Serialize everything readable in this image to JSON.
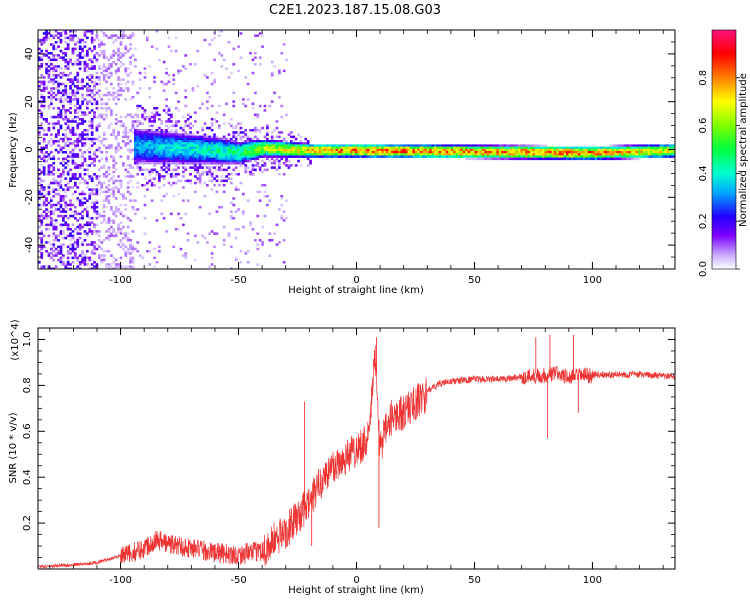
{
  "title": "C2E1.2023.187.15.08.G03",
  "colors": {
    "snr_line": "#ee3333"
  },
  "chart_data": [
    {
      "type": "heatmap",
      "xlabel": "Height of straight line (km)",
      "ylabel": "Frequency (Hz)",
      "xlim": [
        -135,
        135
      ],
      "ylim": [
        -50,
        50
      ],
      "xticks": [
        -100,
        -50,
        0,
        50,
        100
      ],
      "xtick_labels": [
        "-100",
        "-50",
        "0",
        "50",
        "100"
      ],
      "yticks": [
        -40,
        -20,
        0,
        20,
        40
      ],
      "ytick_labels": [
        "-40",
        "-20",
        "0",
        "20",
        "40"
      ],
      "colorbar": {
        "label": "Normalized spectral amplitude",
        "range": [
          0,
          1
        ],
        "ticks": [
          0,
          0.2,
          0.4,
          0.6,
          0.8
        ],
        "tick_labels": [
          "0.0",
          "0.2",
          "0.4",
          "0.6",
          "0.8"
        ],
        "colormap": "rainbow"
      },
      "band": {
        "x": [
          -135,
          -110,
          -95,
          -60,
          -50,
          -40,
          -20,
          0,
          100,
          135
        ],
        "center_freq": [
          0,
          0,
          2,
          0,
          -1,
          1,
          0,
          0,
          -1,
          0
        ],
        "half_width": [
          50,
          50,
          8,
          6,
          5,
          4,
          3,
          3,
          3,
          3
        ],
        "peak_amplitude": [
          0.1,
          0.1,
          0.35,
          0.45,
          0.5,
          0.65,
          0.8,
          0.85,
          0.85,
          0.7
        ]
      }
    },
    {
      "type": "line",
      "xlabel": "Height of straight line (km)",
      "ylabel": "SNR (10 * v/v)",
      "yscale_note": "(x10^4)",
      "xlim": [
        -135,
        135
      ],
      "ylim": [
        0,
        1.05
      ],
      "xticks": [
        -100,
        -50,
        0,
        50,
        100
      ],
      "xtick_labels": [
        "-100",
        "-50",
        "0",
        "50",
        "100"
      ],
      "yticks": [
        0.2,
        0.4,
        0.6,
        0.8,
        1.0
      ],
      "ytick_labels": [
        "0.2",
        "0.4",
        "0.6",
        "0.8",
        "1.0"
      ],
      "series": [
        {
          "x": [
            -135,
            -120,
            -110,
            -100,
            -90,
            -85,
            -80,
            -70,
            -60,
            -50,
            -40,
            -35,
            -30,
            -25,
            -20,
            -15,
            -10,
            -5,
            0,
            5,
            8,
            10,
            15,
            20,
            25,
            30,
            35,
            40,
            50,
            60,
            70,
            75,
            80,
            85,
            90,
            95,
            100,
            110,
            120,
            135
          ],
          "y": [
            0.01,
            0.02,
            0.03,
            0.06,
            0.1,
            0.14,
            0.12,
            0.1,
            0.08,
            0.07,
            0.09,
            0.14,
            0.18,
            0.24,
            0.3,
            0.4,
            0.46,
            0.5,
            0.54,
            0.58,
            0.95,
            0.55,
            0.68,
            0.7,
            0.74,
            0.78,
            0.81,
            0.82,
            0.83,
            0.83,
            0.84,
            0.85,
            0.85,
            0.86,
            0.84,
            0.85,
            0.85,
            0.85,
            0.85,
            0.84
          ]
        }
      ],
      "spikes": [
        {
          "x": 8.5,
          "y": 1.01
        },
        {
          "x": 9.5,
          "y": 0.18
        },
        {
          "x": -22,
          "y": 0.73
        },
        {
          "x": -19,
          "y": 0.1
        },
        {
          "x": 81,
          "y": 0.57
        },
        {
          "x": 82,
          "y": 1.02
        },
        {
          "x": 92,
          "y": 1.02
        },
        {
          "x": 94,
          "y": 0.68
        },
        {
          "x": 76,
          "y": 1.01
        }
      ]
    }
  ]
}
